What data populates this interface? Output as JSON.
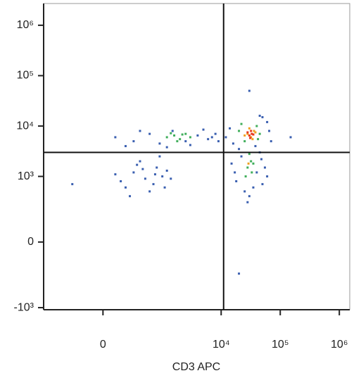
{
  "chart_data": {
    "type": "scatter",
    "x_label": "CD3 APC",
    "scale": "biexponential",
    "xlim": [
      -1000,
      1500000
    ],
    "ylim": [
      -1100,
      2700000
    ],
    "xticks": [
      0,
      {
        "value": 10000,
        "label": "10⁴"
      },
      {
        "value": 100000,
        "label": "10⁵"
      },
      {
        "value": 1000000,
        "label": "10⁶"
      }
    ],
    "yticks": [
      {
        "value": 1000000,
        "label": "10⁶"
      },
      {
        "value": 100000,
        "label": "10⁵"
      },
      {
        "value": 10000,
        "label": "10⁴"
      },
      {
        "value": 1000,
        "label": "10³"
      },
      0,
      {
        "value": -1000,
        "label": "-10³"
      }
    ],
    "quadrant": {
      "x": 11000,
      "y": 3000
    },
    "series": [
      {
        "color": "#3a5fb0",
        "x": [
          150,
          300,
          500,
          800,
          200,
          1000,
          400,
          700,
          1200,
          100,
          600,
          900,
          350,
          1400,
          250,
          750,
          1100,
          450,
          100,
          300,
          600,
          900,
          1500,
          2500,
          4000,
          6000,
          8000,
          9000,
          200,
          5000,
          3000,
          7000,
          400,
          1200,
          18000,
          25000,
          40000,
          50000,
          22000,
          45000,
          30000,
          15000,
          55000,
          35000,
          20000,
          48000,
          28000,
          60000,
          38000,
          17000,
          14000,
          60000,
          70000,
          12000,
          50000,
          16000,
          65000,
          45000,
          30000,
          150000,
          -300,
          20000
        ],
        "y": [
          800,
          1200,
          900,
          1500,
          600,
          1000,
          2000,
          700,
          1300,
          1100,
          500,
          2500,
          1700,
          900,
          400,
          1100,
          600,
          1400,
          6000,
          5000,
          7000,
          4500,
          8000,
          5000,
          6500,
          5500,
          7000,
          5000,
          4000,
          8500,
          4200,
          6000,
          8000,
          3800,
          800,
          500,
          1200,
          700,
          2500,
          3000,
          400,
          1800,
          1500,
          600,
          3500,
          2200,
          300,
          1000,
          4000,
          1200,
          9000,
          12000,
          5000,
          6000,
          15000,
          4500,
          8000,
          16000,
          50000,
          6000,
          700,
          -200
        ]
      },
      {
        "color": "#3fae5a",
        "x": [
          1200,
          1600,
          2000,
          2500,
          3000,
          1800,
          2200,
          1400,
          28000,
          32000,
          26000,
          35000,
          30000,
          33000,
          20000,
          45000,
          25000,
          40000,
          22000,
          42000
        ],
        "y": [
          6000,
          6500,
          5500,
          7000,
          6000,
          5000,
          6800,
          7200,
          1500,
          2000,
          1000,
          1800,
          2800,
          1200,
          8000,
          7000,
          5000,
          10000,
          11000,
          5500
        ]
      },
      {
        "color": "#f0a020",
        "x": [
          28000,
          32000,
          36000,
          25000,
          30000,
          34000,
          29000,
          38000
        ],
        "y": [
          7000,
          6000,
          8000,
          6500,
          9000,
          5500,
          1800,
          7500
        ]
      },
      {
        "color": "#e8361c",
        "x": [
          30000,
          33000,
          31000,
          35000,
          28000,
          32000
        ],
        "y": [
          6500,
          7000,
          5800,
          6800,
          7500,
          8000
        ]
      }
    ]
  }
}
